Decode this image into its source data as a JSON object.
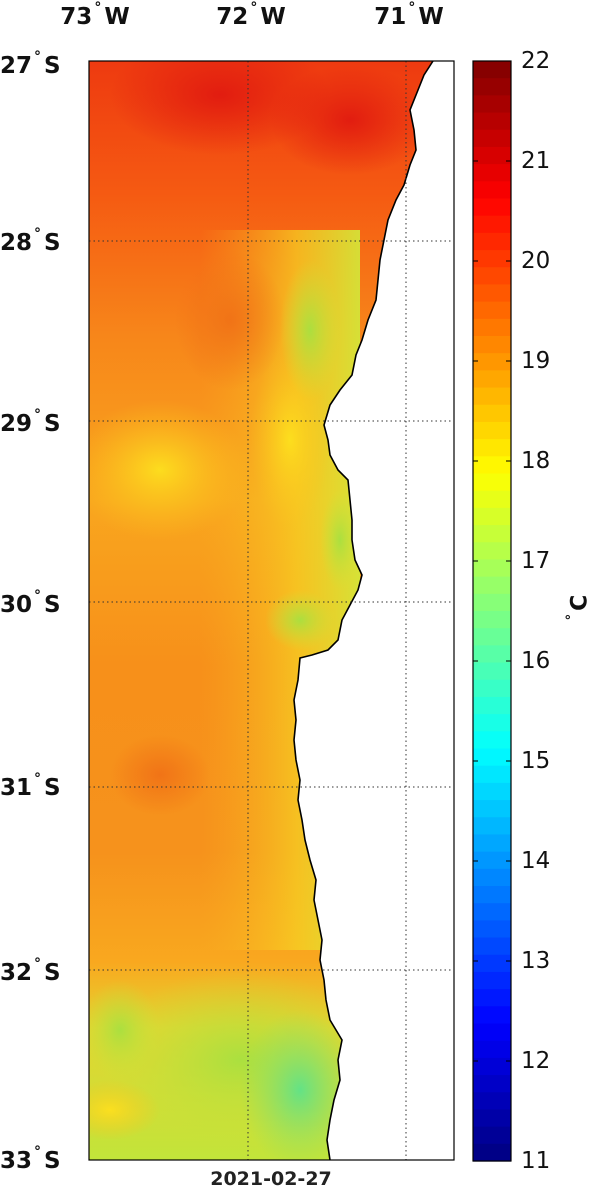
{
  "map": {
    "longitude_labels": [
      {
        "value": "73",
        "hemi": "W"
      },
      {
        "value": "72",
        "hemi": "W"
      },
      {
        "value": "71",
        "hemi": "W"
      }
    ],
    "latitude_labels": [
      {
        "value": "27",
        "hemi": "S"
      },
      {
        "value": "28",
        "hemi": "S"
      },
      {
        "value": "29",
        "hemi": "S"
      },
      {
        "value": "30",
        "hemi": "S"
      },
      {
        "value": "31",
        "hemi": "S"
      },
      {
        "value": "32",
        "hemi": "S"
      },
      {
        "value": "33",
        "hemi": "S"
      }
    ],
    "date": "2021-02-27",
    "land_color": "#ffffff",
    "coast_color": "#000000"
  },
  "colorbar": {
    "ticks": [
      "22",
      "21",
      "20",
      "19",
      "18",
      "17",
      "16",
      "15",
      "14",
      "13",
      "12",
      "11"
    ],
    "min": 11,
    "max": 22,
    "unit": "C",
    "colormap": "jet"
  }
}
